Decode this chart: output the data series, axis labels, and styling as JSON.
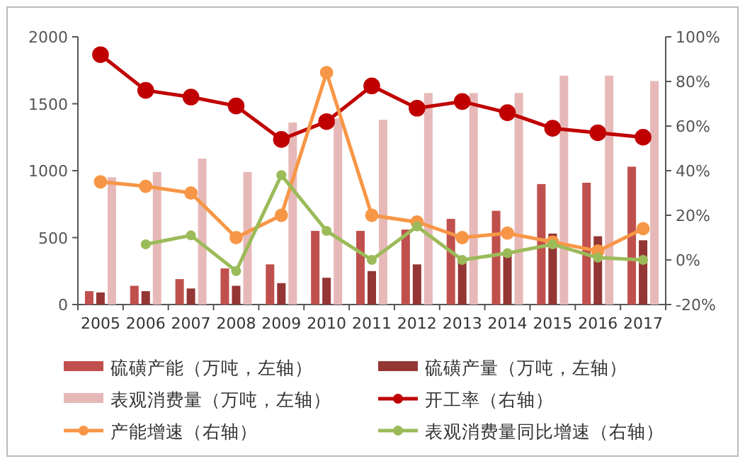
{
  "chart_data": {
    "type": "bar",
    "categories": [
      "2005",
      "2006",
      "2007",
      "2008",
      "2009",
      "2010",
      "2011",
      "2012",
      "2013",
      "2014",
      "2015",
      "2016",
      "2017"
    ],
    "ylim": [
      0,
      2000
    ],
    "yticks": [
      0,
      500,
      1000,
      1500,
      2000
    ],
    "y2lim": [
      -20,
      100
    ],
    "y2ticks": [
      {
        "value": -20,
        "label": "-20%"
      },
      {
        "value": 0,
        "label": "0%"
      },
      {
        "value": 20,
        "label": "20%"
      },
      {
        "value": 40,
        "label": "40%"
      },
      {
        "value": 60,
        "label": "60%"
      },
      {
        "value": 80,
        "label": "80%"
      },
      {
        "value": 100,
        "label": "100%"
      }
    ],
    "legend": "bottom",
    "grid": false,
    "series": [
      {
        "name": "硫磺产能（万吨，左轴）",
        "color": "#c0504d",
        "values": [
          100,
          140,
          190,
          270,
          300,
          550,
          550,
          560,
          640,
          700,
          900,
          910,
          1030
        ]
      },
      {
        "name": "硫磺产量（万吨，左轴）",
        "color": "#943634",
        "values": [
          90,
          100,
          120,
          140,
          160,
          200,
          250,
          300,
          330,
          380,
          530,
          510,
          480
        ]
      },
      {
        "name": "表观消费量（万吨，左轴）",
        "color": "#e6b9b8",
        "values": [
          950,
          990,
          1090,
          990,
          1360,
          1390,
          1380,
          1580,
          1580,
          1580,
          1710,
          1710,
          1670
        ]
      },
      {
        "name": "开工率（右轴）",
        "type": "line",
        "axis": "y2",
        "marker": "circle",
        "color": "#c00000",
        "values": [
          92,
          76,
          73,
          69,
          54,
          62,
          78,
          68,
          71,
          66,
          59,
          57,
          55
        ]
      },
      {
        "name": "产能增速（右轴）",
        "type": "line",
        "axis": "y2",
        "marker": "circle",
        "color": "#f79646",
        "values": [
          35,
          33,
          30,
          10,
          20,
          84,
          20,
          17,
          10,
          12,
          8,
          4,
          14
        ]
      },
      {
        "name": "表观消费量同比增速（右轴）",
        "type": "line",
        "axis": "y2",
        "marker": "circle",
        "color": "#9bbb59",
        "values": [
          null,
          7,
          11,
          -5,
          38,
          13,
          0,
          15,
          0,
          3,
          7,
          1,
          0
        ]
      }
    ]
  }
}
